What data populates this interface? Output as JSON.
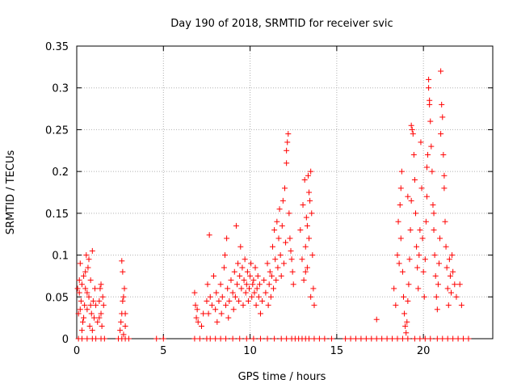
{
  "chart_data": {
    "type": "scatter",
    "title": "Day 190 of 2018, SRMTID for receiver svic",
    "xlabel": "GPS time / hours",
    "ylabel": "SRMTID / TECUs",
    "xlim": [
      0,
      24
    ],
    "ylim": [
      0,
      0.35
    ],
    "x_ticks": [
      0,
      5,
      10,
      15,
      20
    ],
    "x_tick_labels": [
      "0",
      "5",
      "10",
      "15",
      "20"
    ],
    "y_ticks": [
      0,
      0.05,
      0.1,
      0.15,
      0.2,
      0.25,
      0.3,
      0.35
    ],
    "y_tick_labels": [
      "0",
      "0.05",
      "0.1",
      "0.15",
      "0.2",
      "0.25",
      "0.3",
      "0.35"
    ],
    "grid": true,
    "marker": "+",
    "color": "#ff0000",
    "series": [
      {
        "name": "SRMTID",
        "points": [
          [
            0.05,
            0.06
          ],
          [
            0.1,
            0.03
          ],
          [
            0.15,
            0.055
          ],
          [
            0.2,
            0.09
          ],
          [
            0.25,
            0.045
          ],
          [
            0.3,
            0.065
          ],
          [
            0.35,
            0.02
          ],
          [
            0.4,
            0.075
          ],
          [
            0.45,
            0.04
          ],
          [
            0.5,
            0.06
          ],
          [
            0.55,
            0.1
          ],
          [
            0.6,
            0.035
          ],
          [
            0.65,
            0.085
          ],
          [
            0.7,
            0.05
          ],
          [
            0.75,
            0.015
          ],
          [
            0.8,
            0.07
          ],
          [
            0.85,
            0.03
          ],
          [
            0.9,
            0.105
          ],
          [
            0.95,
            0.045
          ],
          [
            1.0,
            0.025
          ],
          [
            1.05,
            0.06
          ],
          [
            1.1,
            0.04
          ],
          [
            0.5,
            0.08
          ],
          [
            0.7,
            0.095
          ],
          [
            0.9,
            0.01
          ],
          [
            0.3,
            0.01
          ],
          [
            0.2,
            0.035
          ],
          [
            0.6,
            0.055
          ],
          [
            1.2,
            0.02
          ],
          [
            1.3,
            0.045
          ],
          [
            1.35,
            0.06
          ],
          [
            1.4,
            0.03
          ],
          [
            1.45,
            0.015
          ],
          [
            1.5,
            0.05
          ],
          [
            1.55,
            0.04
          ],
          [
            1.3,
            0.025
          ],
          [
            1.4,
            0.065
          ],
          [
            0.4,
            0.025
          ],
          [
            0.8,
            0.04
          ],
          [
            0.15,
            0.07
          ],
          [
            2.5,
            0.01
          ],
          [
            2.55,
            0.02
          ],
          [
            2.6,
            0.03
          ],
          [
            2.65,
            0.045
          ],
          [
            2.7,
            0.05
          ],
          [
            2.75,
            0.06
          ],
          [
            2.6,
            0.093
          ],
          [
            2.65,
            0.08
          ],
          [
            2.7,
            0.005
          ],
          [
            2.8,
            0.015
          ],
          [
            2.8,
            0.03
          ],
          [
            6.8,
            0.055
          ],
          [
            6.85,
            0.04
          ],
          [
            6.9,
            0.025
          ],
          [
            6.95,
            0.035
          ],
          [
            7.0,
            0.02
          ],
          [
            7.2,
            0.015
          ],
          [
            7.3,
            0.03
          ],
          [
            7.5,
            0.045
          ],
          [
            7.55,
            0.065
          ],
          [
            7.6,
            0.03
          ],
          [
            7.65,
            0.124
          ],
          [
            7.7,
            0.05
          ],
          [
            7.8,
            0.04
          ],
          [
            7.9,
            0.075
          ],
          [
            8.0,
            0.035
          ],
          [
            8.05,
            0.055
          ],
          [
            8.1,
            0.02
          ],
          [
            8.2,
            0.045
          ],
          [
            8.3,
            0.065
          ],
          [
            8.35,
            0.03
          ],
          [
            8.4,
            0.05
          ],
          [
            8.5,
            0.085
          ],
          [
            8.55,
            0.1
          ],
          [
            8.6,
            0.04
          ],
          [
            8.65,
            0.12
          ],
          [
            8.7,
            0.06
          ],
          [
            8.75,
            0.025
          ],
          [
            8.8,
            0.045
          ],
          [
            8.9,
            0.07
          ],
          [
            9.0,
            0.055
          ],
          [
            9.05,
            0.035
          ],
          [
            9.1,
            0.08
          ],
          [
            9.15,
            0.05
          ],
          [
            9.2,
            0.135
          ],
          [
            9.25,
            0.065
          ],
          [
            9.3,
            0.09
          ],
          [
            9.35,
            0.045
          ],
          [
            9.4,
            0.075
          ],
          [
            9.45,
            0.11
          ],
          [
            9.5,
            0.06
          ],
          [
            9.55,
            0.085
          ],
          [
            9.6,
            0.04
          ],
          [
            9.65,
            0.07
          ],
          [
            9.7,
            0.095
          ],
          [
            9.75,
            0.055
          ],
          [
            9.8,
            0.065
          ],
          [
            9.85,
            0.08
          ],
          [
            9.9,
            0.045
          ],
          [
            9.95,
            0.06
          ],
          [
            10.0,
            0.075
          ],
          [
            10.05,
            0.09
          ],
          [
            10.1,
            0.05
          ],
          [
            10.15,
            0.065
          ],
          [
            10.2,
            0.07
          ],
          [
            10.25,
            0.055
          ],
          [
            10.3,
            0.085
          ],
          [
            10.35,
            0.04
          ],
          [
            10.4,
            0.06
          ],
          [
            10.45,
            0.075
          ],
          [
            10.5,
            0.05
          ],
          [
            10.55,
            0.065
          ],
          [
            10.6,
            0.03
          ],
          [
            10.7,
            0.045
          ],
          [
            10.8,
            0.07
          ],
          [
            10.9,
            0.055
          ],
          [
            11.0,
            0.09
          ],
          [
            11.05,
            0.04
          ],
          [
            11.1,
            0.065
          ],
          [
            11.15,
            0.08
          ],
          [
            11.2,
            0.05
          ],
          [
            11.25,
            0.075
          ],
          [
            11.3,
            0.11
          ],
          [
            11.35,
            0.06
          ],
          [
            11.4,
            0.13
          ],
          [
            11.45,
            0.095
          ],
          [
            11.5,
            0.07
          ],
          [
            11.55,
            0.14
          ],
          [
            11.6,
            0.085
          ],
          [
            11.65,
            0.12
          ],
          [
            11.7,
            0.155
          ],
          [
            11.75,
            0.1
          ],
          [
            11.8,
            0.075
          ],
          [
            11.85,
            0.135
          ],
          [
            11.9,
            0.165
          ],
          [
            11.95,
            0.09
          ],
          [
            12.0,
            0.18
          ],
          [
            12.05,
            0.115
          ],
          [
            12.1,
            0.21
          ],
          [
            12.15,
            0.235
          ],
          [
            12.2,
            0.245
          ],
          [
            12.1,
            0.225
          ],
          [
            12.25,
            0.15
          ],
          [
            12.3,
            0.12
          ],
          [
            12.35,
            0.105
          ],
          [
            12.4,
            0.095
          ],
          [
            12.45,
            0.08
          ],
          [
            12.5,
            0.065
          ],
          [
            12.9,
            0.13
          ],
          [
            13.0,
            0.095
          ],
          [
            13.05,
            0.16
          ],
          [
            13.1,
            0.07
          ],
          [
            13.15,
            0.19
          ],
          [
            13.2,
            0.11
          ],
          [
            13.25,
            0.145
          ],
          [
            13.3,
            0.085
          ],
          [
            13.35,
            0.195
          ],
          [
            13.4,
            0.12
          ],
          [
            13.45,
            0.165
          ],
          [
            13.5,
            0.2
          ],
          [
            13.55,
            0.15
          ],
          [
            13.6,
            0.1
          ],
          [
            13.65,
            0.06
          ],
          [
            13.5,
            0.05
          ],
          [
            13.4,
            0.175
          ],
          [
            13.3,
            0.135
          ],
          [
            13.7,
            0.04
          ],
          [
            13.2,
            0.08
          ],
          [
            17.3,
            0.023
          ],
          [
            18.3,
            0.06
          ],
          [
            18.4,
            0.04
          ],
          [
            18.5,
            0.1
          ],
          [
            18.55,
            0.14
          ],
          [
            18.6,
            0.09
          ],
          [
            18.65,
            0.16
          ],
          [
            18.7,
            0.12
          ],
          [
            18.75,
            0.2
          ],
          [
            18.8,
            0.08
          ],
          [
            18.85,
            0.05
          ],
          [
            18.9,
            0.03
          ],
          [
            18.95,
            0.015
          ],
          [
            19.0,
            0.007
          ],
          [
            19.05,
            0.02
          ],
          [
            19.1,
            0.045
          ],
          [
            19.15,
            0.065
          ],
          [
            19.2,
            0.095
          ],
          [
            19.25,
            0.13
          ],
          [
            19.3,
            0.165
          ],
          [
            19.35,
            0.25
          ],
          [
            19.4,
            0.245
          ],
          [
            19.45,
            0.22
          ],
          [
            19.5,
            0.19
          ],
          [
            19.55,
            0.15
          ],
          [
            19.6,
            0.11
          ],
          [
            19.65,
            0.085
          ],
          [
            19.7,
            0.06
          ],
          [
            19.75,
            0.1
          ],
          [
            19.8,
            0.13
          ],
          [
            19.85,
            0.235
          ],
          [
            19.9,
            0.18
          ],
          [
            19.95,
            0.12
          ],
          [
            20.0,
            0.08
          ],
          [
            20.05,
            0.05
          ],
          [
            20.1,
            0.095
          ],
          [
            20.15,
            0.14
          ],
          [
            20.2,
            0.17
          ],
          [
            20.25,
            0.22
          ],
          [
            20.3,
            0.3
          ],
          [
            20.35,
            0.28
          ],
          [
            20.4,
            0.26
          ],
          [
            20.45,
            0.23
          ],
          [
            20.5,
            0.2
          ],
          [
            20.55,
            0.16
          ],
          [
            20.6,
            0.13
          ],
          [
            20.65,
            0.1
          ],
          [
            20.7,
            0.075
          ],
          [
            20.75,
            0.05
          ],
          [
            20.8,
            0.035
          ],
          [
            20.85,
            0.065
          ],
          [
            20.9,
            0.09
          ],
          [
            20.95,
            0.12
          ],
          [
            21.0,
            0.32
          ],
          [
            21.05,
            0.28
          ],
          [
            21.1,
            0.265
          ],
          [
            21.15,
            0.22
          ],
          [
            21.2,
            0.18
          ],
          [
            21.25,
            0.14
          ],
          [
            21.3,
            0.11
          ],
          [
            21.35,
            0.085
          ],
          [
            21.4,
            0.06
          ],
          [
            21.45,
            0.04
          ],
          [
            21.5,
            0.095
          ],
          [
            21.55,
            0.075
          ],
          [
            21.6,
            0.055
          ],
          [
            21.65,
            0.1
          ],
          [
            21.7,
            0.08
          ],
          [
            21.8,
            0.065
          ],
          [
            21.9,
            0.05
          ],
          [
            22.1,
            0.065
          ],
          [
            22.2,
            0.04
          ],
          [
            20.3,
            0.31
          ],
          [
            20.35,
            0.285
          ],
          [
            19.3,
            0.255
          ],
          [
            20.2,
            0.205
          ],
          [
            19.1,
            0.17
          ],
          [
            18.7,
            0.18
          ],
          [
            21.0,
            0.245
          ],
          [
            21.2,
            0.195
          ],
          [
            20.6,
            0.15
          ]
        ]
      }
    ],
    "zero_points_x": [
      0.1,
      0.3,
      0.6,
      0.9,
      1.1,
      1.4,
      1.6,
      2.4,
      2.6,
      2.8,
      3.0,
      4.6,
      5.0,
      6.8,
      7.1,
      7.5,
      7.7,
      8.0,
      8.3,
      8.6,
      9.0,
      9.4,
      9.8,
      10.2,
      10.6,
      11.0,
      11.4,
      11.8,
      12.1,
      12.4,
      12.6,
      12.8,
      13.0,
      13.2,
      13.4,
      13.7,
      14.0,
      14.3,
      14.7,
      15.5,
      15.8,
      16.1,
      16.4,
      16.7,
      17.0,
      17.3,
      17.6,
      17.9,
      18.2,
      18.5,
      18.8,
      19.1,
      19.5,
      19.8,
      20.1,
      20.4,
      20.8,
      21.1,
      21.4,
      21.7,
      22.0,
      22.3,
      22.6
    ]
  }
}
